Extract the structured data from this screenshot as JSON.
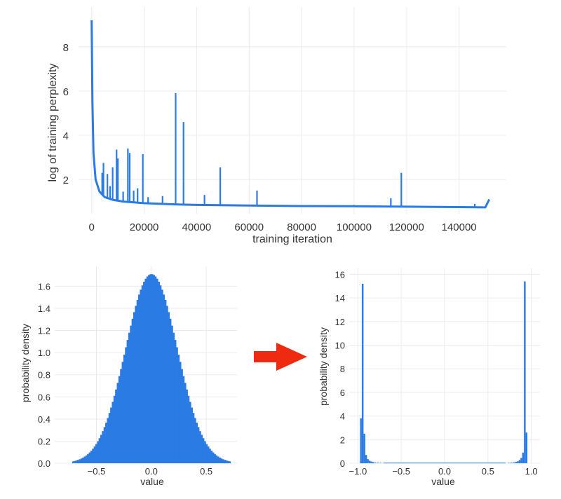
{
  "colors": {
    "series": "#2b7be4",
    "arrow": "#ee2a10",
    "grid": "#e9ecef",
    "text": "#333333"
  },
  "chart_data": [
    {
      "type": "line",
      "xlabel": "training iteration",
      "ylabel": "log of training perplexity",
      "xlim": [
        -5000,
        158000
      ],
      "ylim": [
        0.45,
        9.8
      ],
      "x_ticks": [
        "0",
        "20000",
        "40000",
        "60000",
        "80000",
        "100000",
        "120000",
        "140000"
      ],
      "y_ticks": [
        "2",
        "4",
        "6",
        "8"
      ],
      "grid": true,
      "baseline": [
        [
          0,
          9.2
        ],
        [
          300,
          5.5
        ],
        [
          700,
          3.2
        ],
        [
          1500,
          2.0
        ],
        [
          3000,
          1.45
        ],
        [
          5000,
          1.2
        ],
        [
          8000,
          1.08
        ],
        [
          12000,
          1.0
        ],
        [
          20000,
          0.93
        ],
        [
          30000,
          0.88
        ],
        [
          40000,
          0.85
        ],
        [
          60000,
          0.82
        ],
        [
          80000,
          0.8
        ],
        [
          100000,
          0.79
        ],
        [
          120000,
          0.77
        ],
        [
          140000,
          0.75
        ],
        [
          150000,
          0.74
        ],
        [
          151500,
          1.1
        ]
      ],
      "spikes": [
        [
          4000,
          2.3
        ],
        [
          4500,
          2.75
        ],
        [
          6000,
          2.25
        ],
        [
          7000,
          1.7
        ],
        [
          8000,
          2.55
        ],
        [
          9500,
          3.35
        ],
        [
          10000,
          2.95
        ],
        [
          12000,
          1.45
        ],
        [
          13800,
          3.4
        ],
        [
          14500,
          3.2
        ],
        [
          16000,
          1.5
        ],
        [
          17500,
          1.6
        ],
        [
          19500,
          3.15
        ],
        [
          21500,
          1.2
        ],
        [
          27000,
          1.25
        ],
        [
          32000,
          5.9
        ],
        [
          35000,
          4.6
        ],
        [
          43000,
          1.3
        ],
        [
          49000,
          2.55
        ],
        [
          63000,
          1.5
        ],
        [
          100000,
          0.85
        ],
        [
          114000,
          1.15
        ],
        [
          118000,
          2.3
        ],
        [
          146000,
          0.9
        ]
      ]
    },
    {
      "type": "bar",
      "xlabel": "value",
      "ylabel": "probability density",
      "xlim": [
        -0.88,
        0.78
      ],
      "ylim": [
        0,
        1.78
      ],
      "x_ticks": [
        -0.5,
        0.0,
        0.5
      ],
      "x_tick_labels": [
        "−0.5",
        "0.0",
        "0.5"
      ],
      "y_ticks": [
        0,
        0.2,
        0.4,
        0.6,
        0.8,
        1.0,
        1.2,
        1.4,
        1.6
      ],
      "y_tick_labels": [
        "0.0",
        "0.2",
        "0.4",
        "0.6",
        "0.8",
        "1.0",
        "1.2",
        "1.4",
        "1.6"
      ],
      "grid": true,
      "distribution": "normal",
      "mean": 0.0,
      "std": 0.235,
      "peak": 1.71,
      "range": [
        -0.72,
        0.72
      ],
      "bins": 96
    },
    {
      "type": "bar",
      "xlabel": "value",
      "ylabel": "probability density",
      "xlim": [
        -1.1,
        1.1
      ],
      "ylim": [
        0,
        16.5
      ],
      "x_ticks": [
        -1.0,
        -0.5,
        0.0,
        0.5,
        1.0
      ],
      "x_tick_labels": [
        "−1.0",
        "−0.5",
        "0.0",
        "0.5",
        "1.0"
      ],
      "y_ticks": [
        0,
        2,
        4,
        6,
        8,
        10,
        12,
        14,
        16
      ],
      "y_tick_labels": [
        "0",
        "2",
        "4",
        "6",
        "8",
        "10",
        "12",
        "14",
        "16"
      ],
      "grid": true,
      "bars": [
        [
          -0.965,
          3.8
        ],
        [
          -0.945,
          15.2
        ],
        [
          -0.925,
          2.5
        ],
        [
          -0.905,
          0.7
        ],
        [
          -0.885,
          0.35
        ],
        [
          -0.865,
          0.22
        ],
        [
          -0.845,
          0.15
        ],
        [
          -0.825,
          0.1
        ],
        [
          -0.8,
          0.07
        ],
        [
          -0.77,
          0.05
        ],
        [
          -0.74,
          0.04
        ],
        [
          -0.7,
          0.03
        ],
        [
          0.7,
          0.03
        ],
        [
          0.74,
          0.04
        ],
        [
          0.77,
          0.06
        ],
        [
          0.8,
          0.08
        ],
        [
          0.825,
          0.12
        ],
        [
          0.845,
          0.17
        ],
        [
          0.865,
          0.27
        ],
        [
          0.885,
          0.45
        ],
        [
          0.905,
          0.9
        ],
        [
          0.925,
          15.4
        ],
        [
          0.945,
          2.6
        ]
      ]
    }
  ]
}
